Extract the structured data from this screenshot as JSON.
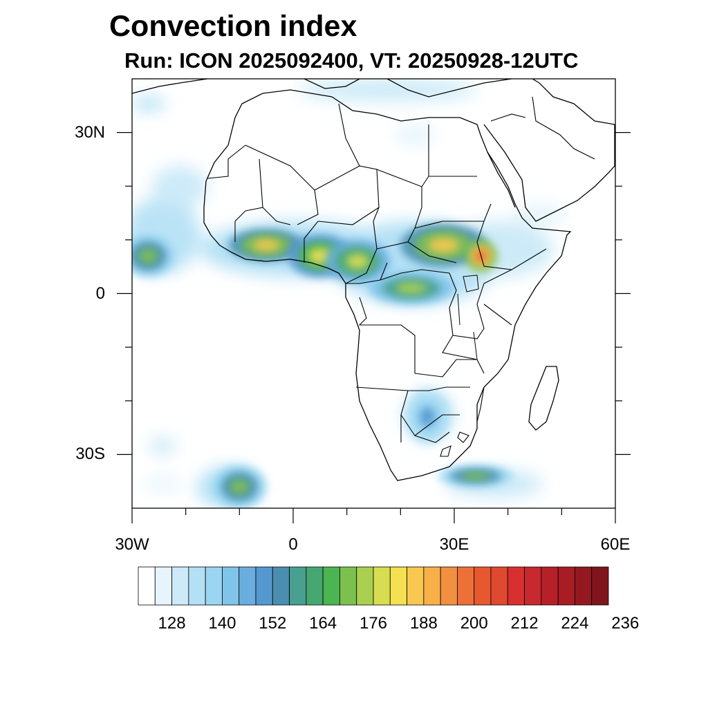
{
  "title": "Convection index",
  "subtitle": "Run: ICON 2025092400,  VT: 20250928-12UTC",
  "axes": {
    "lon_ticks": [
      {
        "value": -30,
        "label": "30W"
      },
      {
        "value": 0,
        "label": "0"
      },
      {
        "value": 30,
        "label": "30E"
      },
      {
        "value": 60,
        "label": "60E"
      }
    ],
    "lat_ticks": [
      {
        "value": 30,
        "label": "30N"
      },
      {
        "value": 0,
        "label": "0"
      },
      {
        "value": -30,
        "label": "30S"
      }
    ],
    "lon_range": [
      -30,
      60
    ],
    "lat_range": [
      -40,
      40
    ]
  },
  "colorbar": {
    "colors": [
      "#ffffff",
      "#e6f5fc",
      "#cceaf8",
      "#b3e0f5",
      "#9ad6f2",
      "#80c4ea",
      "#6aaee0",
      "#5598d0",
      "#4a8fb0",
      "#48a090",
      "#46a870",
      "#4cb450",
      "#7cc050",
      "#aad050",
      "#d8dc50",
      "#f4e050",
      "#f8c850",
      "#f8b048",
      "#f09040",
      "#ec7038",
      "#e85830",
      "#e04830",
      "#d83030",
      "#c82830",
      "#b82028",
      "#a81c24",
      "#941820",
      "#80141c"
    ],
    "labels": [
      "128",
      "140",
      "152",
      "164",
      "176",
      "188",
      "200",
      "212",
      "224",
      "236"
    ]
  },
  "map": {
    "convective_blobs": [
      {
        "lon": -5,
        "lat": 9,
        "rx": 7,
        "ry": 3,
        "level": 16
      },
      {
        "lon": 5,
        "lat": 7,
        "rx": 6,
        "ry": 4,
        "level": 15
      },
      {
        "lon": 12,
        "lat": 6,
        "rx": 6,
        "ry": 4,
        "level": 14
      },
      {
        "lon": 22,
        "lat": 1,
        "rx": 8,
        "ry": 3,
        "level": 13
      },
      {
        "lon": 28,
        "lat": 9,
        "rx": 8,
        "ry": 4,
        "level": 16
      },
      {
        "lon": 35,
        "lat": 7,
        "rx": 3,
        "ry": 3,
        "level": 20
      },
      {
        "lon": -27,
        "lat": 7,
        "rx": 5,
        "ry": 4,
        "level": 12
      },
      {
        "lon": -10,
        "lat": -36,
        "rx": 5,
        "ry": 4,
        "level": 12
      },
      {
        "lon": 34,
        "lat": -34,
        "rx": 7,
        "ry": 2,
        "level": 12
      },
      {
        "lon": 25,
        "lat": -23,
        "rx": 4,
        "ry": 5,
        "level": 7
      }
    ]
  }
}
